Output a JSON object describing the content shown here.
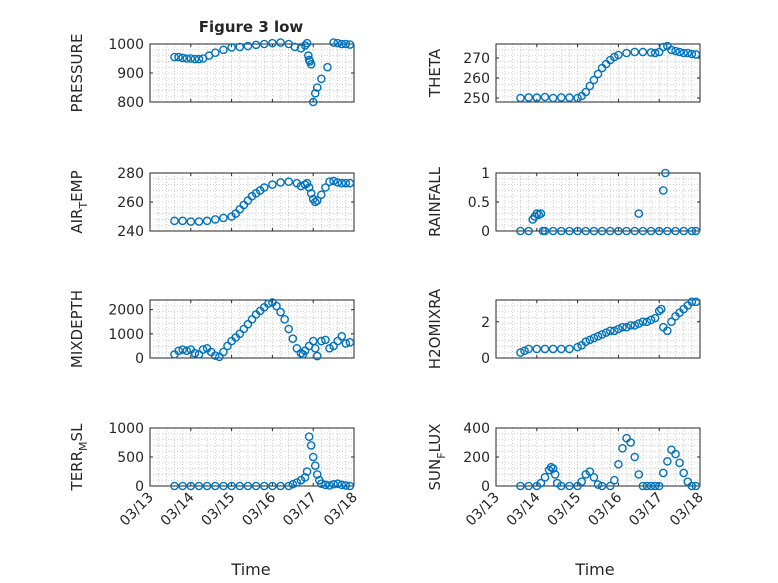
{
  "figure": {
    "title": "Figure 3 low",
    "xlabel": "Time"
  },
  "colors": {
    "marker": "#0072BD",
    "axis": "#262626",
    "grid": "#b0b0b0"
  },
  "chart_data": [
    {
      "type": "scatter",
      "ylabel": "PRESSURE",
      "xlim": [
        "03/13",
        "03/18"
      ],
      "ylim": [
        800,
        1000
      ],
      "yticks": [
        800,
        900,
        1000
      ],
      "grid": true,
      "title": "Figure 3 low",
      "series": [
        {
          "x": [
            0.6,
            0.7,
            0.8,
            0.9,
            1.0,
            1.1,
            1.2,
            1.3,
            1.45,
            1.6,
            1.8,
            2.0,
            2.2,
            2.4,
            2.6,
            2.8,
            3.0,
            3.2,
            3.4,
            3.55,
            3.7,
            3.8,
            3.85,
            3.88,
            3.9,
            3.92,
            3.95,
            4.0,
            4.05,
            4.1,
            4.2,
            4.35,
            4.5,
            4.6,
            4.7,
            4.8,
            4.9
          ],
          "y": [
            955,
            955,
            952,
            950,
            950,
            948,
            948,
            950,
            960,
            970,
            980,
            988,
            990,
            993,
            997,
            1000,
            1003,
            1005,
            1000,
            990,
            985,
            995,
            1003,
            960,
            945,
            940,
            930,
            800,
            830,
            850,
            880,
            920,
            1005,
            1003,
            1000,
            1000,
            998
          ]
        }
      ]
    },
    {
      "type": "scatter",
      "ylabel": "THETA",
      "xlim": [
        "03/13",
        "03/18"
      ],
      "ylim": [
        248,
        277
      ],
      "yticks": [
        250,
        260,
        270
      ],
      "grid": true,
      "series": [
        {
          "x": [
            0.6,
            0.8,
            1.0,
            1.2,
            1.4,
            1.6,
            1.8,
            2.0,
            2.1,
            2.2,
            2.3,
            2.4,
            2.5,
            2.6,
            2.7,
            2.8,
            2.9,
            3.0,
            3.2,
            3.4,
            3.6,
            3.8,
            3.9,
            4.0,
            4.1,
            4.2,
            4.3,
            4.4,
            4.5,
            4.6,
            4.7,
            4.8,
            4.9
          ],
          "y": [
            250,
            250.3,
            250.2,
            250.5,
            250,
            250.3,
            250.2,
            250,
            251,
            253,
            256,
            259,
            262,
            265,
            267,
            269,
            270.5,
            271.5,
            272.5,
            273,
            273,
            272.8,
            272.5,
            273,
            275.5,
            276,
            274,
            273.5,
            273,
            272.5,
            272.5,
            272,
            271.8
          ]
        }
      ]
    },
    {
      "type": "scatter",
      "ylabel": "AIR_TEMP",
      "xlim": [
        "03/13",
        "03/18"
      ],
      "ylim": [
        240,
        280
      ],
      "yticks": [
        240,
        260,
        280
      ],
      "grid": true,
      "series": [
        {
          "x": [
            0.6,
            0.8,
            1.0,
            1.2,
            1.4,
            1.6,
            1.8,
            2.0,
            2.1,
            2.2,
            2.3,
            2.4,
            2.5,
            2.6,
            2.7,
            2.8,
            3.0,
            3.2,
            3.4,
            3.6,
            3.7,
            3.8,
            3.85,
            3.9,
            3.95,
            4.0,
            4.05,
            4.1,
            4.2,
            4.3,
            4.4,
            4.5,
            4.6,
            4.7,
            4.8,
            4.9
          ],
          "y": [
            247,
            247,
            246.5,
            246.5,
            247,
            248,
            249,
            250,
            252,
            255,
            258,
            261,
            264,
            266,
            268,
            270,
            272,
            273.5,
            274,
            273,
            271,
            272,
            273,
            270,
            266,
            262,
            260,
            261,
            265,
            270,
            274,
            274.5,
            273.5,
            273,
            273,
            273
          ]
        }
      ]
    },
    {
      "type": "scatter",
      "ylabel": "RAINFALL",
      "xlim": [
        "03/13",
        "03/18"
      ],
      "ylim": [
        0,
        1
      ],
      "yticks": [
        0,
        0.5,
        1
      ],
      "grid": true,
      "series": [
        {
          "x": [
            0.6,
            0.8,
            0.9,
            0.95,
            1.0,
            1.05,
            1.1,
            1.15,
            1.2,
            1.4,
            1.6,
            1.8,
            2.0,
            2.2,
            2.4,
            2.6,
            2.8,
            3.0,
            3.2,
            3.4,
            3.5,
            3.6,
            3.8,
            4.0,
            4.1,
            4.15,
            4.2,
            4.4,
            4.6,
            4.8,
            4.9
          ],
          "y": [
            0,
            0,
            0.2,
            0.25,
            0.3,
            0.28,
            0.3,
            0,
            0,
            0,
            0,
            0,
            0,
            0,
            0,
            0,
            0,
            0,
            0,
            0,
            0.3,
            0,
            0,
            0,
            0.7,
            1.0,
            0,
            0,
            0,
            0,
            0
          ]
        }
      ]
    },
    {
      "type": "scatter",
      "ylabel": "MIXDEPTH",
      "xlim": [
        "03/13",
        "03/18"
      ],
      "ylim": [
        0,
        2400
      ],
      "yticks": [
        0,
        1000,
        2000
      ],
      "grid": true,
      "series": [
        {
          "x": [
            0.6,
            0.7,
            0.8,
            0.9,
            1.0,
            1.1,
            1.2,
            1.3,
            1.4,
            1.5,
            1.6,
            1.7,
            1.8,
            1.9,
            2.0,
            2.1,
            2.2,
            2.3,
            2.4,
            2.5,
            2.6,
            2.7,
            2.8,
            2.9,
            3.0,
            3.1,
            3.2,
            3.3,
            3.4,
            3.5,
            3.6,
            3.7,
            3.75,
            3.8,
            3.9,
            4.0,
            4.05,
            4.1,
            4.2,
            4.3,
            4.4,
            4.5,
            4.6,
            4.7,
            4.8,
            4.9
          ],
          "y": [
            150,
            300,
            350,
            300,
            350,
            200,
            150,
            350,
            400,
            250,
            100,
            50,
            250,
            500,
            700,
            850,
            1000,
            1200,
            1400,
            1600,
            1800,
            1950,
            2100,
            2250,
            2300,
            2150,
            1900,
            1600,
            1200,
            800,
            400,
            200,
            150,
            300,
            500,
            700,
            400,
            80,
            700,
            750,
            400,
            500,
            700,
            900,
            600,
            650
          ]
        }
      ]
    },
    {
      "type": "scatter",
      "ylabel": "H2OMIXRA",
      "xlim": [
        "03/13",
        "03/18"
      ],
      "ylim": [
        0,
        3.2
      ],
      "yticks": [
        0,
        2
      ],
      "grid": true,
      "series": [
        {
          "x": [
            0.6,
            0.7,
            0.8,
            1.0,
            1.2,
            1.4,
            1.6,
            1.8,
            2.0,
            2.1,
            2.2,
            2.3,
            2.4,
            2.5,
            2.6,
            2.7,
            2.8,
            2.9,
            3.0,
            3.1,
            3.2,
            3.3,
            3.4,
            3.5,
            3.6,
            3.7,
            3.8,
            3.9,
            4.0,
            4.05,
            4.1,
            4.2,
            4.3,
            4.4,
            4.5,
            4.6,
            4.7,
            4.8,
            4.9
          ],
          "y": [
            0.3,
            0.4,
            0.5,
            0.5,
            0.5,
            0.5,
            0.5,
            0.5,
            0.6,
            0.7,
            0.9,
            1.0,
            1.1,
            1.2,
            1.3,
            1.4,
            1.5,
            1.5,
            1.6,
            1.7,
            1.7,
            1.8,
            1.8,
            1.9,
            2.0,
            2.0,
            2.1,
            2.2,
            2.6,
            2.7,
            1.7,
            1.5,
            2.0,
            2.3,
            2.5,
            2.7,
            2.9,
            3.1,
            3.1
          ]
        }
      ]
    },
    {
      "type": "scatter",
      "ylabel": "TERR_MSL",
      "xlim": [
        "03/13",
        "03/18"
      ],
      "ylim": [
        0,
        1000
      ],
      "yticks": [
        0,
        500,
        1000
      ],
      "grid": true,
      "series": [
        {
          "x": [
            0.6,
            0.8,
            1.0,
            1.2,
            1.4,
            1.6,
            1.8,
            2.0,
            2.2,
            2.4,
            2.6,
            2.8,
            3.0,
            3.2,
            3.4,
            3.5,
            3.6,
            3.7,
            3.8,
            3.85,
            3.9,
            3.95,
            4.0,
            4.05,
            4.1,
            4.15,
            4.2,
            4.3,
            4.4,
            4.5,
            4.6,
            4.7,
            4.8,
            4.9
          ],
          "y": [
            0,
            0,
            0,
            0,
            0,
            0,
            0,
            0,
            0,
            0,
            0,
            0,
            0,
            0,
            0,
            30,
            60,
            100,
            150,
            250,
            850,
            700,
            500,
            350,
            200,
            100,
            40,
            20,
            10,
            30,
            40,
            20,
            10,
            0
          ]
        }
      ]
    },
    {
      "type": "scatter",
      "ylabel": "SUN_FLUX",
      "xlim": [
        "03/13",
        "03/18"
      ],
      "ylim": [
        0,
        400
      ],
      "yticks": [
        0,
        200,
        400
      ],
      "grid": true,
      "series": [
        {
          "x": [
            0.6,
            0.8,
            1.0,
            1.1,
            1.2,
            1.3,
            1.35,
            1.4,
            1.45,
            1.5,
            1.6,
            1.8,
            2.0,
            2.1,
            2.2,
            2.3,
            2.4,
            2.5,
            2.6,
            2.8,
            2.9,
            3.0,
            3.1,
            3.2,
            3.3,
            3.4,
            3.5,
            3.6,
            3.7,
            3.8,
            3.9,
            4.0,
            4.1,
            4.2,
            4.3,
            4.4,
            4.5,
            4.6,
            4.7,
            4.8,
            4.9
          ],
          "y": [
            0,
            0,
            0,
            20,
            60,
            110,
            130,
            120,
            80,
            20,
            0,
            0,
            0,
            30,
            80,
            100,
            60,
            10,
            0,
            0,
            40,
            150,
            260,
            330,
            300,
            200,
            80,
            0,
            0,
            0,
            0,
            0,
            90,
            170,
            250,
            220,
            160,
            90,
            30,
            0,
            0
          ]
        }
      ]
    }
  ],
  "xticks": [
    "03/13",
    "03/14",
    "03/15",
    "03/16",
    "03/17",
    "03/18"
  ]
}
